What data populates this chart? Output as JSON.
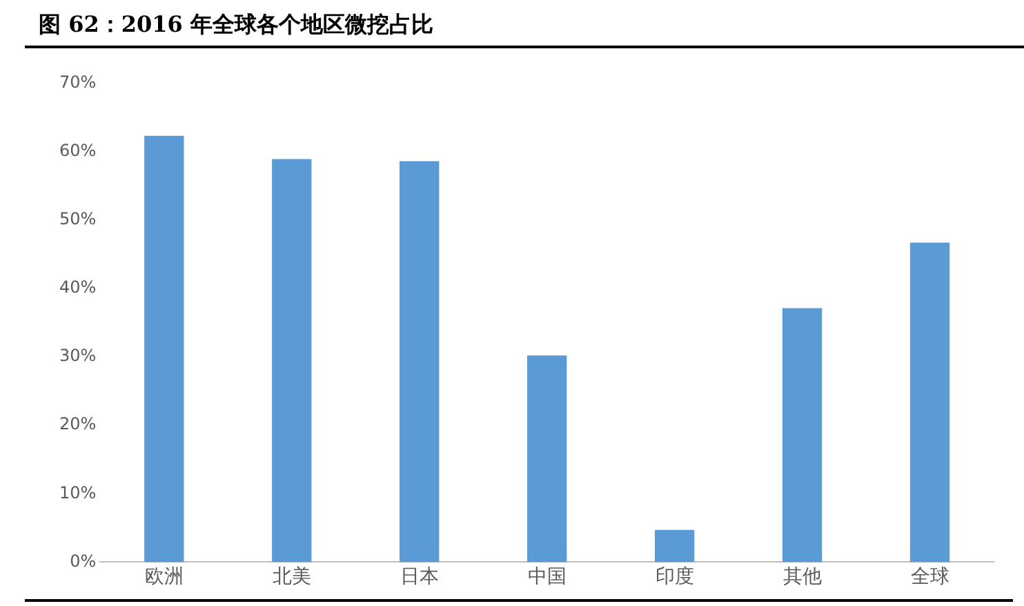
{
  "chart_data": {
    "type": "bar",
    "title": "图 62：2016 年全球各个地区微挖占比",
    "categories": [
      "欧洲",
      "北美",
      "日本",
      "中国",
      "印度",
      "其他",
      "全球"
    ],
    "values": [
      62.3,
      58.9,
      58.6,
      30.2,
      4.7,
      37.1,
      46.7
    ],
    "color": "#5b9bd5",
    "ylim": [
      0,
      70
    ],
    "yticks": [
      {
        "value": 0,
        "label": "0%"
      },
      {
        "value": 10,
        "label": "10%"
      },
      {
        "value": 20,
        "label": "20%"
      },
      {
        "value": 30,
        "label": "30%"
      },
      {
        "value": 40,
        "label": "40%"
      },
      {
        "value": 50,
        "label": "50%"
      },
      {
        "value": 60,
        "label": "60%"
      },
      {
        "value": 70,
        "label": "70%"
      }
    ],
    "grid": false,
    "legend": false
  }
}
